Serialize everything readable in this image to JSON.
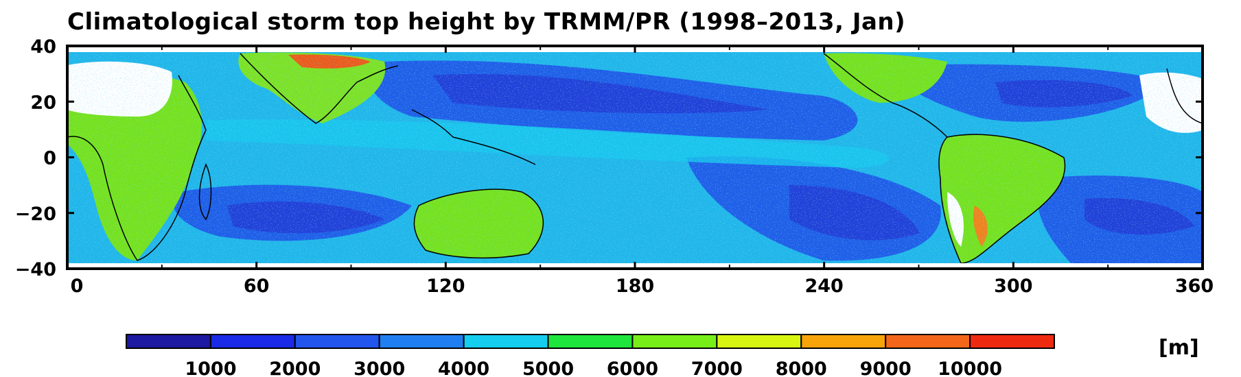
{
  "title": "Climatological storm top height by TRMM/PR (1998–2013, Jan)",
  "x_axis": {
    "ticks": [
      "0",
      "60",
      "120",
      "180",
      "240",
      "300",
      "360"
    ],
    "values": [
      0,
      60,
      120,
      180,
      240,
      300,
      360
    ],
    "range": [
      0,
      360
    ]
  },
  "y_axis": {
    "ticks": [
      "40",
      "20",
      "0",
      "−20",
      "−40"
    ],
    "values": [
      40,
      20,
      0,
      -20,
      -40
    ],
    "range": [
      -40,
      40
    ]
  },
  "colorbar": {
    "unit": "[m]",
    "labels": [
      "1000",
      "2000",
      "3000",
      "4000",
      "5000",
      "6000",
      "7000",
      "8000",
      "9000",
      "10000"
    ],
    "colors": [
      "#1d19a0",
      "#1a2ae6",
      "#2155ec",
      "#1f7ff0",
      "#15cdef",
      "#1ee63c",
      "#78ee18",
      "#d8f512",
      "#f7a30a",
      "#f4661a",
      "#ee2a10"
    ]
  },
  "map": {
    "projection": "equirectangular",
    "lon_range": [
      0,
      360
    ],
    "lat_range": [
      -36,
      36
    ],
    "no_data_color": "#ffffff",
    "coastline_color": "#000000"
  }
}
